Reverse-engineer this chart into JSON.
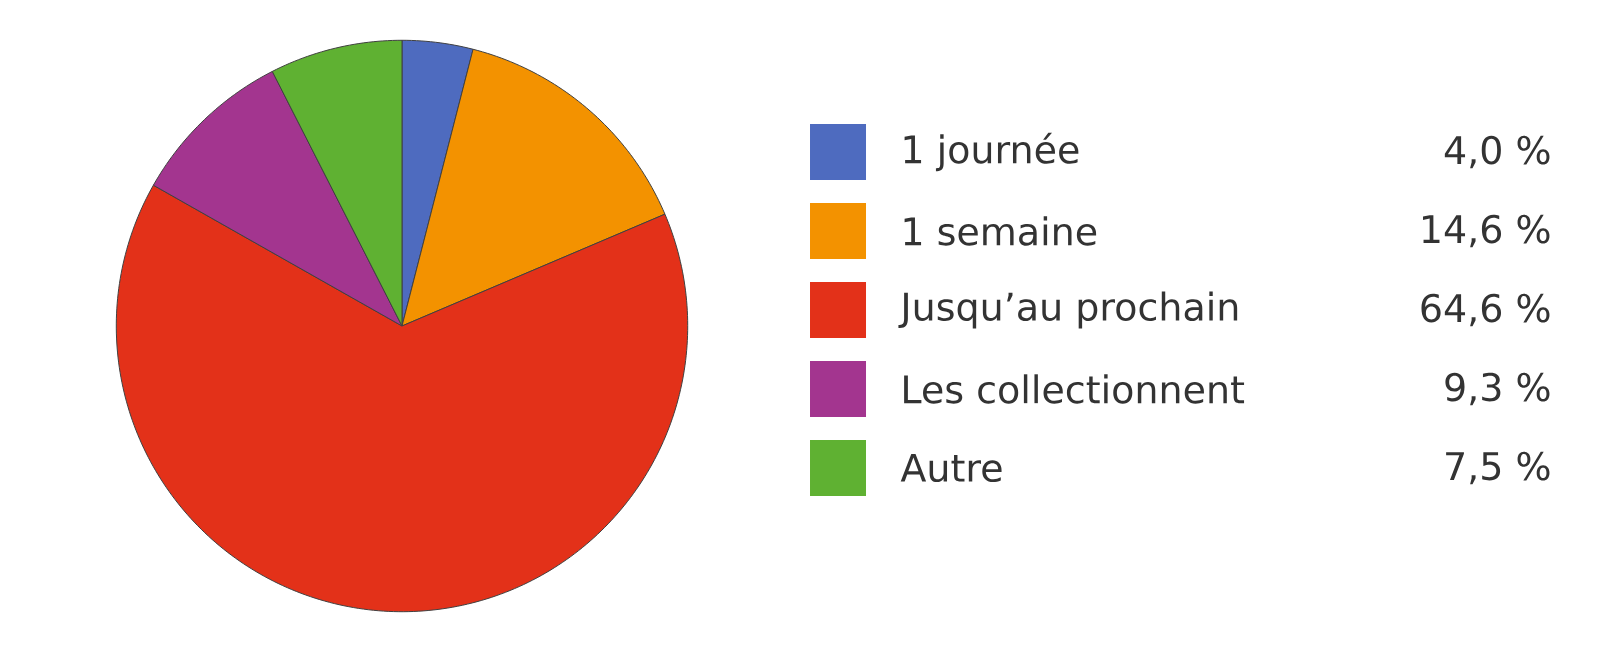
{
  "chart_data": {
    "type": "pie",
    "categories": [
      "1 journée",
      "1 semaine",
      "Jusqu’au prochain",
      "Les collectionnent",
      "Autre"
    ],
    "values": [
      4.0,
      14.6,
      64.6,
      9.3,
      7.5
    ],
    "value_labels": [
      "4,0 %",
      "14,6 %",
      "64,6 %",
      "9,3 %",
      "7,5 %"
    ],
    "colors": [
      "#4e6bbf",
      "#f39200",
      "#e33119",
      "#a3358f",
      "#5fb132"
    ],
    "legend": "right"
  }
}
